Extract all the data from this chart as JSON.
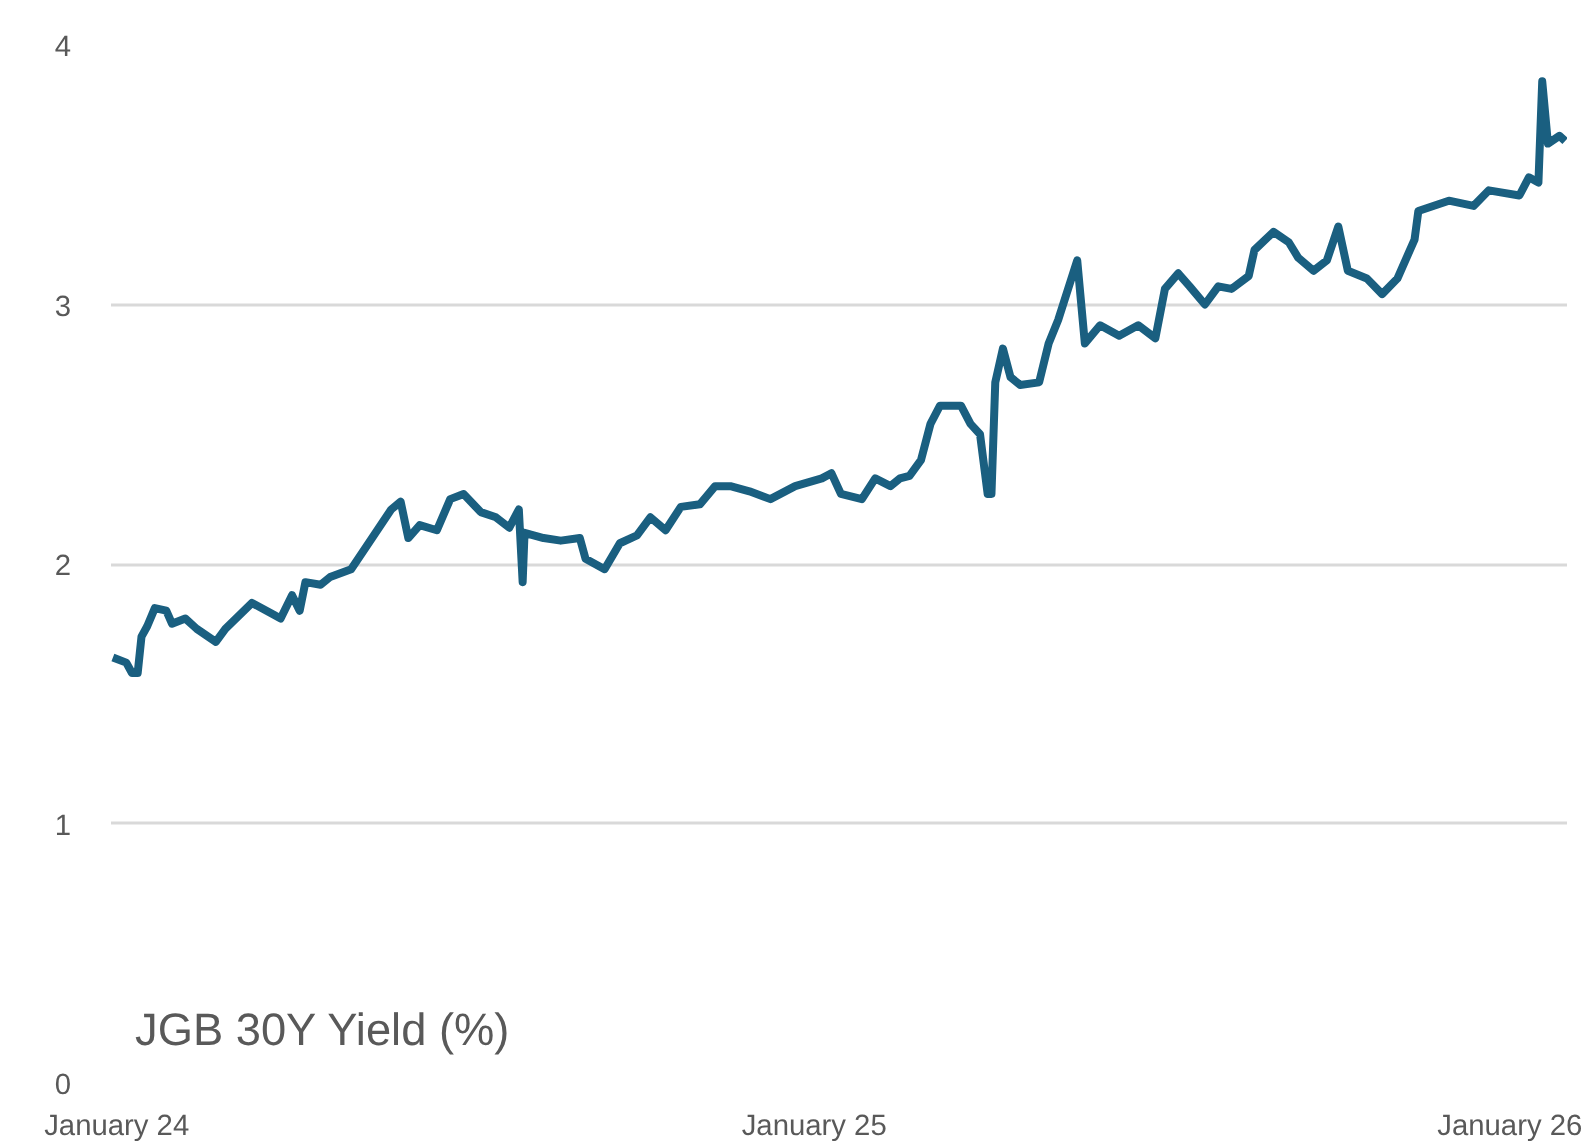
{
  "chart_data": {
    "type": "line",
    "title": "JGB 30Y Yield (%)",
    "x": [
      "2023-12-30",
      "2024-01-06",
      "2024-01-09",
      "2024-01-12",
      "2024-01-14",
      "2024-01-17",
      "2024-01-21",
      "2024-01-27",
      "2024-01-30",
      "2024-02-06",
      "2024-02-12",
      "2024-02-22",
      "2024-02-27",
      "2024-03-12",
      "2024-03-22",
      "2024-03-27",
      "2024-04-02",
      "2024-04-06",
      "2024-04-09",
      "2024-04-17",
      "2024-04-22",
      "2024-05-03",
      "2024-05-14",
      "2024-05-24",
      "2024-05-29",
      "2024-06-02",
      "2024-06-08",
      "2024-06-17",
      "2024-06-24",
      "2024-07-01",
      "2024-07-10",
      "2024-07-18",
      "2024-07-25",
      "2024-07-30",
      "2024-08-01",
      "2024-08-02",
      "2024-08-12",
      "2024-08-21",
      "2024-08-31",
      "2024-09-03",
      "2024-09-13",
      "2024-09-21",
      "2024-09-30",
      "2024-10-07",
      "2024-10-15",
      "2024-10-23",
      "2024-11-02",
      "2024-11-10",
      "2024-11-18",
      "2024-11-28",
      "2024-12-09",
      "2024-12-22",
      "2025-01-05",
      "2025-01-10",
      "2025-01-15",
      "2025-01-26",
      "2025-02-02",
      "2025-02-10",
      "2025-02-15",
      "2025-02-20",
      "2025-02-26",
      "2025-03-03",
      "2025-03-08",
      "2025-03-19",
      "2025-03-24",
      "2025-03-29",
      "2025-04-02",
      "2025-04-04",
      "2025-04-06",
      "2025-04-10",
      "2025-04-14",
      "2025-04-19",
      "2025-04-29",
      "2025-05-04",
      "2025-05-09",
      "2025-05-19",
      "2025-05-23",
      "2025-05-31",
      "2025-06-10",
      "2025-06-20",
      "2025-06-29",
      "2025-07-04",
      "2025-07-11",
      "2025-07-17",
      "2025-07-25",
      "2025-08-01",
      "2025-08-08",
      "2025-08-17",
      "2025-08-20",
      "2025-08-30",
      "2025-09-07",
      "2025-09-12",
      "2025-09-20",
      "2025-09-27",
      "2025-10-03",
      "2025-10-08",
      "2025-10-18",
      "2025-10-26",
      "2025-11-03",
      "2025-11-12",
      "2025-11-14",
      "2025-11-30",
      "2025-12-13",
      "2025-12-21",
      "2026-01-06",
      "2026-01-11",
      "2026-01-16",
      "2026-01-18",
      "2026-01-21",
      "2026-01-27",
      "2026-01-30"
    ],
    "series": [
      {
        "color": "#1a5f80",
        "values": [
          1.64,
          1.62,
          1.58,
          1.58,
          1.72,
          1.76,
          1.83,
          1.82,
          1.77,
          1.79,
          1.75,
          1.7,
          1.75,
          1.85,
          1.81,
          1.79,
          1.88,
          1.82,
          1.93,
          1.92,
          1.95,
          1.98,
          2.1,
          2.21,
          2.24,
          2.1,
          2.15,
          2.13,
          2.25,
          2.27,
          2.2,
          2.18,
          2.14,
          2.21,
          1.93,
          2.12,
          2.1,
          2.09,
          2.1,
          2.02,
          1.98,
          2.08,
          2.11,
          2.18,
          2.13,
          2.22,
          2.23,
          2.3,
          2.3,
          2.28,
          2.25,
          2.3,
          2.33,
          2.35,
          2.27,
          2.25,
          2.33,
          2.3,
          2.33,
          2.34,
          2.4,
          2.54,
          2.61,
          2.61,
          2.54,
          2.5,
          2.27,
          2.27,
          2.7,
          2.83,
          2.72,
          2.69,
          2.7,
          2.85,
          2.94,
          3.17,
          2.85,
          2.92,
          2.88,
          2.92,
          2.87,
          3.06,
          3.12,
          3.07,
          3.0,
          3.07,
          3.06,
          3.11,
          3.21,
          3.28,
          3.24,
          3.18,
          3.13,
          3.17,
          3.3,
          3.13,
          3.1,
          3.04,
          3.1,
          3.25,
          3.36,
          3.4,
          3.38,
          3.44,
          3.42,
          3.49,
          3.47,
          3.86,
          3.62,
          3.65,
          3.63
        ]
      }
    ],
    "xlim": [
      "2023-12-29",
      "2026-01-31"
    ],
    "xticks": [
      {
        "value": "2024-01-01",
        "label": "January 24"
      },
      {
        "value": "2025-01-01",
        "label": "January 25"
      },
      {
        "value": "2026-01-01",
        "label": "January 26"
      }
    ],
    "ylim": [
      0,
      4
    ],
    "yticks": [
      0,
      1,
      2,
      3,
      4
    ],
    "grid": "y"
  }
}
